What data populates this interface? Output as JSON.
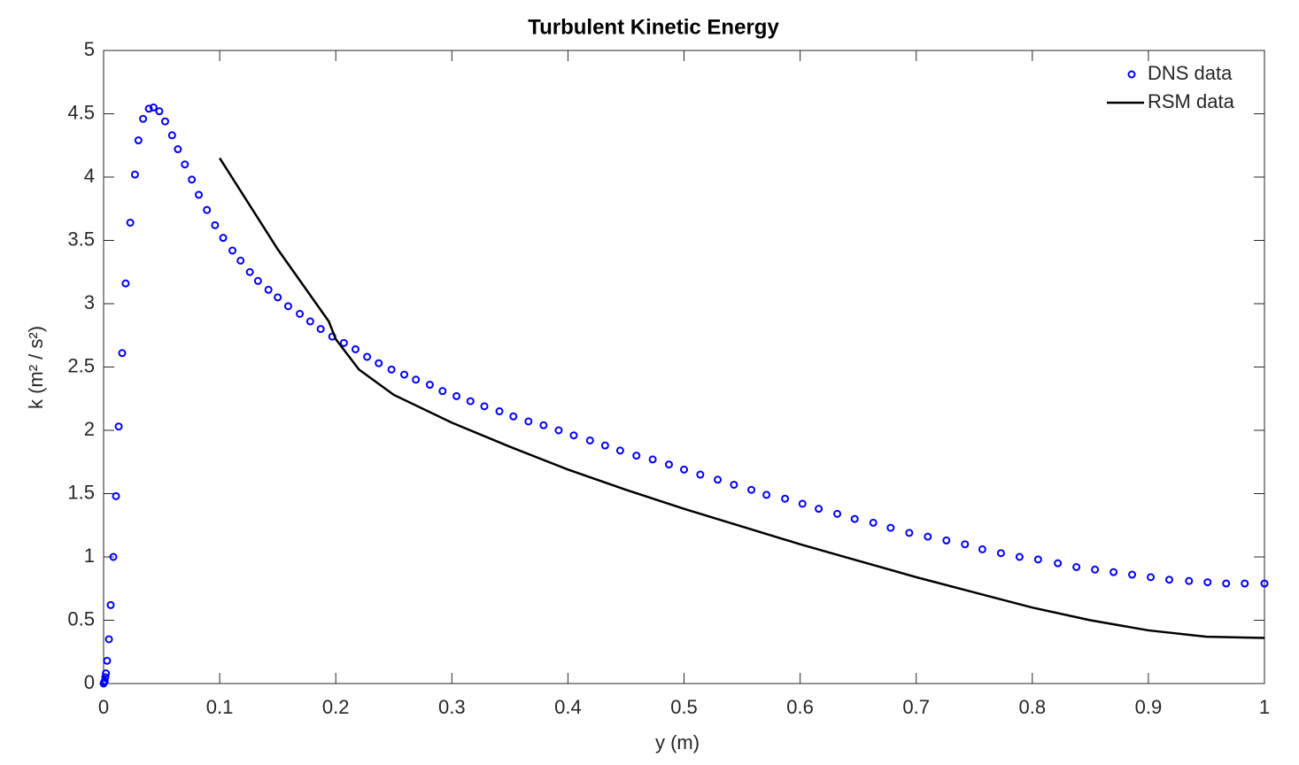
{
  "chart_data": {
    "type": "scatter-line",
    "title": "Turbulent Kinetic Energy",
    "x_label": "y (m)",
    "y_label": "k (m² / s²)",
    "xlim": [
      0,
      1
    ],
    "xticks": [
      0,
      0.1,
      0.2,
      0.3,
      0.4,
      0.5,
      0.6,
      0.7,
      0.8,
      0.9,
      1
    ],
    "ylim": [
      0,
      5
    ],
    "yticks": [
      0,
      0.5,
      1,
      1.5,
      2,
      2.5,
      3,
      3.5,
      4,
      4.5,
      5
    ],
    "grid": false,
    "legend": "northeast",
    "series": [
      {
        "name": "DNS data",
        "color": "#0000ff",
        "kind": "markers",
        "x": [
          0,
          0.0005,
          0.001,
          0.0015,
          0.002,
          0.003,
          0.0046,
          0.0061,
          0.0084,
          0.0107,
          0.013,
          0.016,
          0.019,
          0.023,
          0.027,
          0.03,
          0.034,
          0.039,
          0.043,
          0.048,
          0.053,
          0.059,
          0.064,
          0.07,
          0.076,
          0.082,
          0.089,
          0.096,
          0.103,
          0.111,
          0.118,
          0.126,
          0.133,
          0.142,
          0.15,
          0.159,
          0.169,
          0.178,
          0.187,
          0.197,
          0.207,
          0.217,
          0.227,
          0.237,
          0.248,
          0.259,
          0.269,
          0.281,
          0.292,
          0.304,
          0.316,
          0.328,
          0.341,
          0.353,
          0.366,
          0.379,
          0.392,
          0.405,
          0.419,
          0.432,
          0.445,
          0.459,
          0.473,
          0.487,
          0.5,
          0.514,
          0.529,
          0.543,
          0.558,
          0.571,
          0.587,
          0.602,
          0.616,
          0.632,
          0.647,
          0.663,
          0.678,
          0.694,
          0.71,
          0.726,
          0.742,
          0.757,
          0.773,
          0.789,
          0.805,
          0.822,
          0.838,
          0.854,
          0.87,
          0.886,
          0.902,
          0.918,
          0.935,
          0.951,
          0.967,
          0.983,
          1.0
        ],
        "values": [
          0,
          0.01,
          0.02,
          0.05,
          0.08,
          0.18,
          0.35,
          0.62,
          1.0,
          1.48,
          2.03,
          2.61,
          3.16,
          3.64,
          4.02,
          4.29,
          4.46,
          4.54,
          4.55,
          4.52,
          4.44,
          4.33,
          4.22,
          4.1,
          3.98,
          3.86,
          3.74,
          3.62,
          3.52,
          3.42,
          3.34,
          3.25,
          3.18,
          3.11,
          3.05,
          2.98,
          2.92,
          2.86,
          2.8,
          2.74,
          2.69,
          2.64,
          2.58,
          2.53,
          2.48,
          2.44,
          2.4,
          2.36,
          2.31,
          2.27,
          2.23,
          2.19,
          2.15,
          2.11,
          2.07,
          2.04,
          2.0,
          1.96,
          1.92,
          1.88,
          1.84,
          1.8,
          1.77,
          1.73,
          1.69,
          1.65,
          1.61,
          1.57,
          1.53,
          1.49,
          1.46,
          1.42,
          1.38,
          1.34,
          1.3,
          1.27,
          1.23,
          1.19,
          1.16,
          1.13,
          1.1,
          1.06,
          1.03,
          1.0,
          0.98,
          0.95,
          0.92,
          0.9,
          0.88,
          0.86,
          0.84,
          0.82,
          0.81,
          0.8,
          0.79,
          0.79,
          0.79
        ]
      },
      {
        "name": "RSM data",
        "color": "#000000",
        "kind": "line",
        "x": [
          0.1,
          0.15,
          0.194,
          0.2,
          0.22,
          0.25,
          0.3,
          0.35,
          0.4,
          0.45,
          0.5,
          0.55,
          0.6,
          0.65,
          0.7,
          0.75,
          0.8,
          0.85,
          0.9,
          0.95,
          1.0
        ],
        "values": [
          4.15,
          3.43,
          2.86,
          2.72,
          2.48,
          2.28,
          2.06,
          1.87,
          1.69,
          1.53,
          1.38,
          1.24,
          1.1,
          0.97,
          0.84,
          0.72,
          0.6,
          0.5,
          0.42,
          0.37,
          0.36
        ]
      }
    ]
  }
}
